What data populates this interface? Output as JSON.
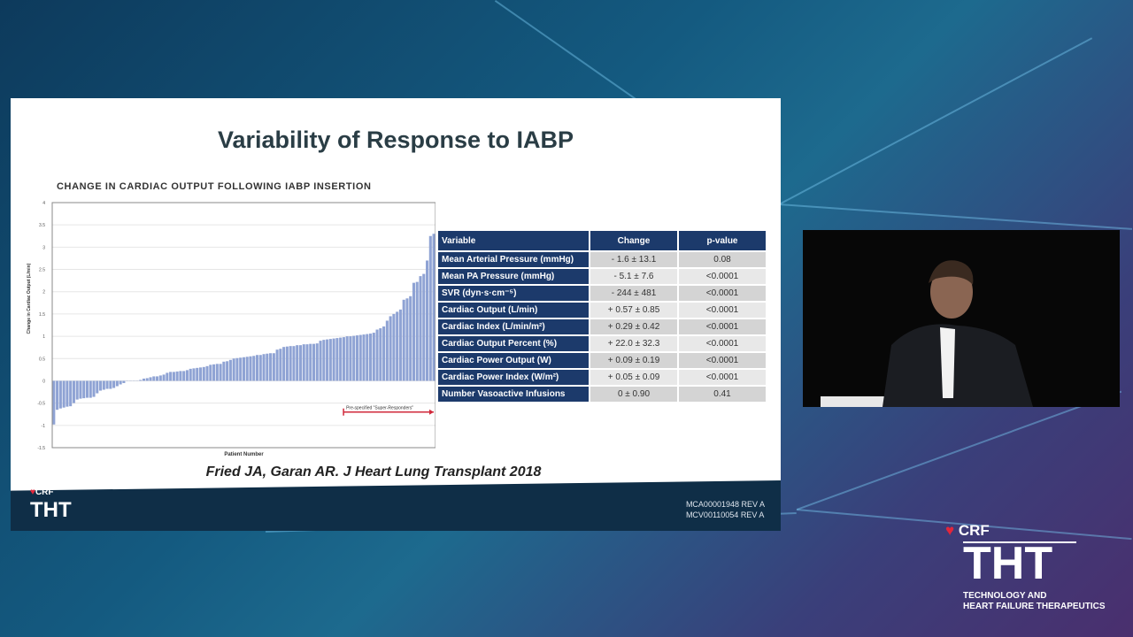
{
  "slide": {
    "title": "Variability of Response to IABP",
    "citation": "Fried JA, Garan AR. J Heart Lung Transplant 2018",
    "logo": {
      "crf": "CRF",
      "tht": "THT"
    },
    "codes": [
      "MCA00001948 REV A",
      "MCV00110054 REV A"
    ],
    "table": {
      "headers": [
        "Variable",
        "Change",
        "p-value"
      ],
      "rows": [
        [
          "Mean Arterial Pressure (mmHg)",
          "- 1.6 ± 13.1",
          "0.08"
        ],
        [
          "Mean PA Pressure (mmHg)",
          "- 5.1 ± 7.6",
          "<0.0001"
        ],
        [
          "SVR (dyn·s·cm⁻⁵)",
          "- 244 ± 481",
          "<0.0001"
        ],
        [
          "Cardiac Output (L/min)",
          "+ 0.57 ± 0.85",
          "<0.0001"
        ],
        [
          "Cardiac Index (L/min/m²)",
          "+ 0.29 ± 0.42",
          "<0.0001"
        ],
        [
          "Cardiac Output Percent (%)",
          "+ 22.0 ± 32.3",
          "<0.0001"
        ],
        [
          "Cardiac Power Output (W)",
          "+ 0.09 ± 0.19",
          "<0.0001"
        ],
        [
          "Cardiac Power Index (W/m²)",
          "+ 0.05 ± 0.09",
          "<0.0001"
        ],
        [
          "Number Vasoactive Infusions",
          "0 ± 0.90",
          "0.41"
        ]
      ]
    }
  },
  "chart_data": {
    "type": "bar",
    "title": "CHANGE IN CARDIAC OUTPUT FOLLOWING IABP INSERTION",
    "xlabel": "Patient Number",
    "ylabel": "Change in Cardiac Output (L/min)",
    "ylim": [
      -1.5,
      4
    ],
    "yticks": [
      "-1.5",
      "-1",
      "-0.5",
      "0",
      "0.5",
      "1",
      "1.5",
      "2",
      "2.5",
      "3",
      "3.5",
      "4"
    ],
    "annotation": "Pre-specified \"Super-Responders\"",
    "annotation_start_fraction": 0.76,
    "bar_color": "#8fa3d4",
    "values": [
      -0.98,
      -0.65,
      -0.62,
      -0.6,
      -0.58,
      -0.57,
      -0.5,
      -0.42,
      -0.4,
      -0.39,
      -0.38,
      -0.38,
      -0.36,
      -0.28,
      -0.22,
      -0.2,
      -0.18,
      -0.18,
      -0.16,
      -0.12,
      -0.08,
      -0.05,
      0,
      0,
      0,
      0,
      0.02,
      0.05,
      0.06,
      0.08,
      0.1,
      0.1,
      0.12,
      0.14,
      0.18,
      0.2,
      0.2,
      0.21,
      0.22,
      0.22,
      0.24,
      0.27,
      0.28,
      0.29,
      0.3,
      0.31,
      0.33,
      0.36,
      0.37,
      0.38,
      0.38,
      0.43,
      0.44,
      0.47,
      0.5,
      0.51,
      0.52,
      0.53,
      0.54,
      0.55,
      0.56,
      0.58,
      0.58,
      0.6,
      0.61,
      0.62,
      0.62,
      0.7,
      0.72,
      0.76,
      0.77,
      0.78,
      0.78,
      0.8,
      0.8,
      0.82,
      0.82,
      0.83,
      0.83,
      0.84,
      0.9,
      0.92,
      0.93,
      0.94,
      0.95,
      0.96,
      0.97,
      0.98,
      1.0,
      1.0,
      1.01,
      1.02,
      1.03,
      1.04,
      1.05,
      1.06,
      1.08,
      1.15,
      1.18,
      1.22,
      1.35,
      1.45,
      1.5,
      1.55,
      1.6,
      1.82,
      1.85,
      1.9,
      2.2,
      2.22,
      2.35,
      2.4,
      2.7,
      3.25,
      3.3
    ]
  },
  "branding": {
    "crf": "CRF",
    "tht": "THT",
    "subtitle_line1": "TECHNOLOGY AND",
    "subtitle_line2": "HEART FAILURE THERAPEUTICS"
  }
}
